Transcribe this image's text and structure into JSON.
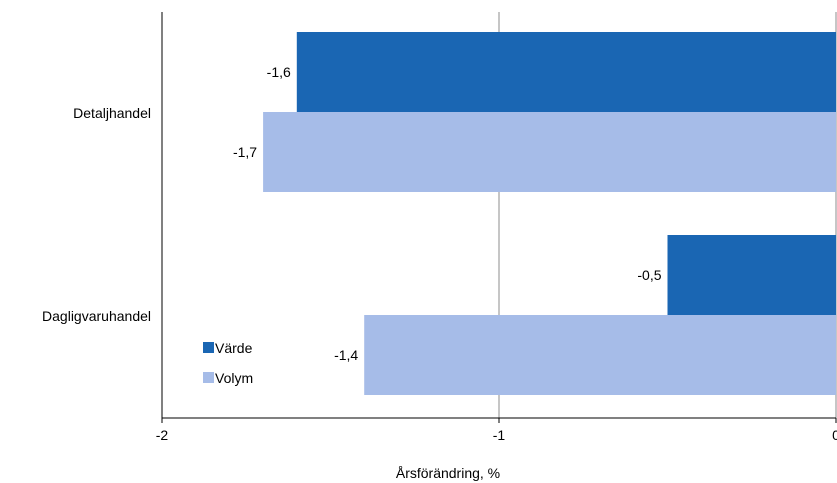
{
  "chart_data": {
    "type": "bar",
    "orientation": "horizontal",
    "categories": [
      "Detaljhandel",
      "Dagligvaruhandel"
    ],
    "series": [
      {
        "name": "Värde",
        "color": "#1a66b3",
        "values": [
          -1.6,
          -0.5
        ],
        "labels": [
          "-1,6",
          "-0,5"
        ]
      },
      {
        "name": "Volym",
        "color": "#a6bce8",
        "values": [
          -1.7,
          -1.4
        ],
        "labels": [
          "-1,7",
          "-1,4"
        ]
      }
    ],
    "x_ticks": [
      {
        "value": -2,
        "label": "-2"
      },
      {
        "value": -1,
        "label": "-1"
      },
      {
        "value": 0,
        "label": "0"
      }
    ],
    "xlabel": "Årsförändring, %",
    "xlim": [
      -2,
      0
    ],
    "grid": "vertical",
    "legend": "bottom-left, inside plot"
  }
}
